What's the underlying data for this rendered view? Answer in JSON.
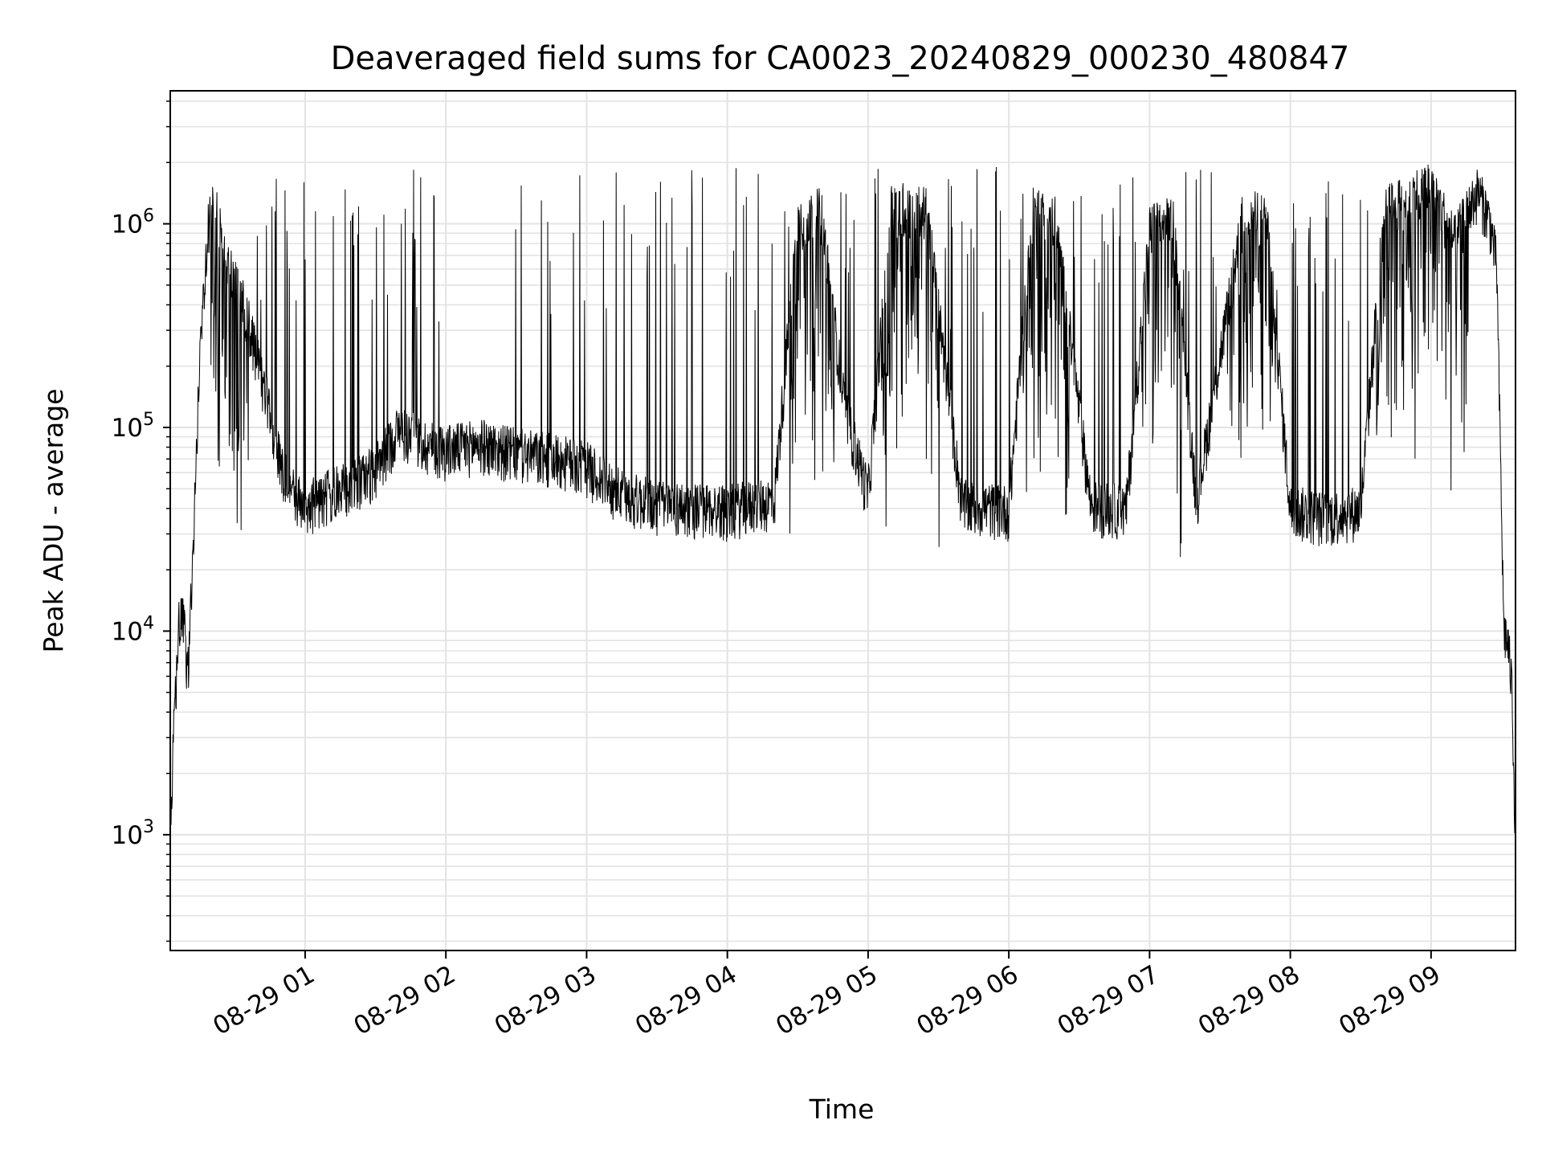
{
  "chart_data": {
    "type": "line",
    "title": "Deaveraged field sums for CA0023_20240829_000230_480847",
    "xlabel": "Time",
    "ylabel": "Peak ADU - average",
    "yscale": "log",
    "ylim": [
      270,
      4500000
    ],
    "xlim": [
      "2024-08-29 00:02:30",
      "2024-08-29 09:36:00"
    ],
    "grid": true,
    "x_tick_labels": [
      "08-29 01",
      "08-29 02",
      "08-29 03",
      "08-29 04",
      "08-29 05",
      "08-29 06",
      "08-29 07",
      "08-29 08",
      "08-29 09"
    ],
    "y_ticks": [
      {
        "base": "10",
        "exp": "3",
        "value": 1000
      },
      {
        "base": "10",
        "exp": "4",
        "value": 10000
      },
      {
        "base": "10",
        "exp": "5",
        "value": 100000
      },
      {
        "base": "10",
        "exp": "6",
        "value": 1000000
      }
    ],
    "series": [
      {
        "color": "#000000",
        "x": [
          "2024-08-29 00:02:30",
          "2024-08-29 00:04:00",
          "2024-08-29 00:06:00",
          "2024-08-29 00:08:00",
          "2024-08-29 00:10:00",
          "2024-08-29 00:12:00",
          "2024-08-29 00:15:00",
          "2024-08-29 00:18:00",
          "2024-08-29 00:20:00",
          "2024-08-29 00:23:00",
          "2024-08-29 00:26:00",
          "2024-08-29 00:30:00",
          "2024-08-29 00:35:00",
          "2024-08-29 00:40:00",
          "2024-08-29 00:45:00",
          "2024-08-29 00:50:00",
          "2024-08-29 00:55:00",
          "2024-08-29 01:00:00",
          "2024-08-29 01:10:00",
          "2024-08-29 01:20:00",
          "2024-08-29 01:30:00",
          "2024-08-29 01:40:00",
          "2024-08-29 01:50:00",
          "2024-08-29 02:00:00",
          "2024-08-29 02:15:00",
          "2024-08-29 02:30:00",
          "2024-08-29 02:45:00",
          "2024-08-29 03:00:00",
          "2024-08-29 03:15:00",
          "2024-08-29 03:30:00",
          "2024-08-29 04:00:00",
          "2024-08-29 04:20:00",
          "2024-08-29 04:30:00",
          "2024-08-29 04:40:00",
          "2024-08-29 04:50:00",
          "2024-08-29 05:00:00",
          "2024-08-29 05:10:00",
          "2024-08-29 05:25:00",
          "2024-08-29 05:40:00",
          "2024-08-29 06:00:00",
          "2024-08-29 06:10:00",
          "2024-08-29 06:20:00",
          "2024-08-29 06:35:00",
          "2024-08-29 06:50:00",
          "2024-08-29 07:00:00",
          "2024-08-29 07:10:00",
          "2024-08-29 07:20:00",
          "2024-08-29 07:40:00",
          "2024-08-29 07:50:00",
          "2024-08-29 08:00:00",
          "2024-08-29 08:15:00",
          "2024-08-29 08:30:00",
          "2024-08-29 08:40:00",
          "2024-08-29 08:50:00",
          "2024-08-29 09:00:00",
          "2024-08-29 09:10:00",
          "2024-08-29 09:20:00",
          "2024-08-29 09:25:00",
          "2024-08-29 09:28:00",
          "2024-08-29 09:31:00",
          "2024-08-29 09:33:00",
          "2024-08-29 09:34:30",
          "2024-08-29 09:36:00"
        ],
        "y": [
          800,
          3000,
          10000,
          11000,
          6000,
          20000,
          200000,
          800000,
          1200000,
          1000000,
          600000,
          500000,
          350000,
          200000,
          110000,
          60000,
          45000,
          40000,
          45000,
          50000,
          60000,
          95000,
          80000,
          75000,
          80000,
          72000,
          68000,
          62000,
          45000,
          40000,
          38000,
          42000,
          1000000,
          1100000,
          120000,
          45000,
          1200000,
          1100000,
          40000,
          38000,
          1100000,
          1000000,
          40000,
          38000,
          900000,
          1000000,
          42000,
          1100000,
          1000000,
          38000,
          35000,
          38000,
          1100000,
          1300000,
          1500000,
          800000,
          1400000,
          1000000,
          600000,
          10000,
          8000,
          5000,
          900
        ]
      }
    ],
    "noise": {
      "baseline_factor": [
        0.72,
        1.38
      ],
      "spike_rate": 0.06,
      "spike_max": 1900000,
      "spike_min": 300000
    }
  }
}
